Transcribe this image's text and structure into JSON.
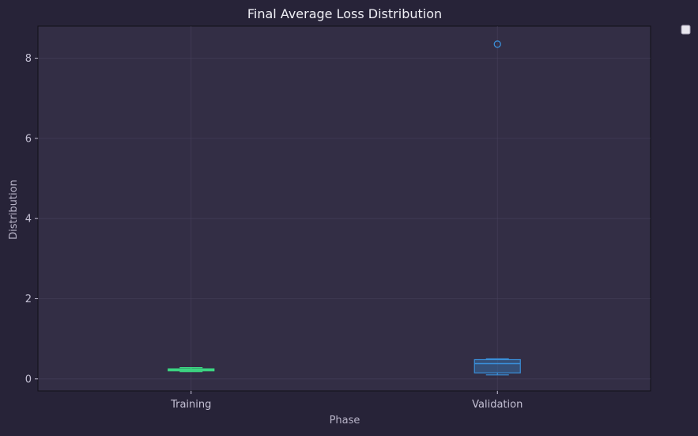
{
  "chart_data": {
    "type": "boxplot",
    "title": "Final Average Loss Distribution",
    "xlabel": "Phase",
    "ylabel": "Distribution",
    "ylim": [
      -0.3,
      8.8
    ],
    "yticks": [
      0,
      2,
      4,
      6,
      8
    ],
    "grid": true,
    "legend": {
      "placement": "outside top-right",
      "entries": []
    },
    "categories": [
      "Training",
      "Validation"
    ],
    "series": [
      {
        "category": "Training",
        "color": "#3ddc84",
        "whisker_low": 0.18,
        "q1": 0.2,
        "median": 0.23,
        "q3": 0.25,
        "whisker_high": 0.28,
        "outliers": []
      },
      {
        "category": "Validation",
        "color": "#3a8fd9",
        "whisker_low": 0.1,
        "q1": 0.15,
        "median": 0.38,
        "q3": 0.48,
        "whisker_high": 0.5,
        "outliers": [
          8.35
        ]
      }
    ]
  },
  "colors": {
    "background": "#272338",
    "plot_background": "#332e45",
    "grid": "#4a4560",
    "title_text": "#eeeef4",
    "label_text": "#b8b4c8"
  }
}
